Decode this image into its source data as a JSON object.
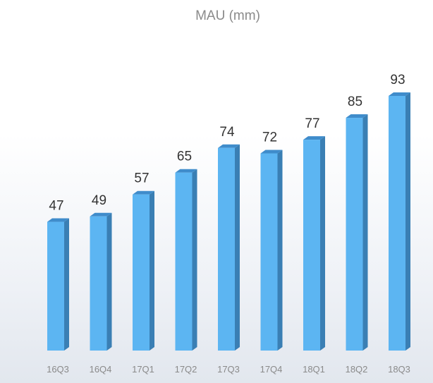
{
  "chart_data": {
    "type": "bar",
    "title": "MAU (mm)",
    "categories": [
      "16Q3",
      "16Q4",
      "17Q1",
      "17Q2",
      "17Q3",
      "17Q4",
      "18Q1",
      "18Q2",
      "18Q3"
    ],
    "values": [
      47,
      49,
      57,
      65,
      74,
      72,
      77,
      85,
      93
    ],
    "xlabel": "",
    "ylabel": "",
    "ylim": [
      0,
      93
    ],
    "grid": false,
    "style": "3d",
    "colors": {
      "front": "#5cb5f2",
      "side": "#3a7fb4",
      "top": "#3f8ccb",
      "label": "#333333",
      "tick": "#8a8a8a"
    }
  }
}
